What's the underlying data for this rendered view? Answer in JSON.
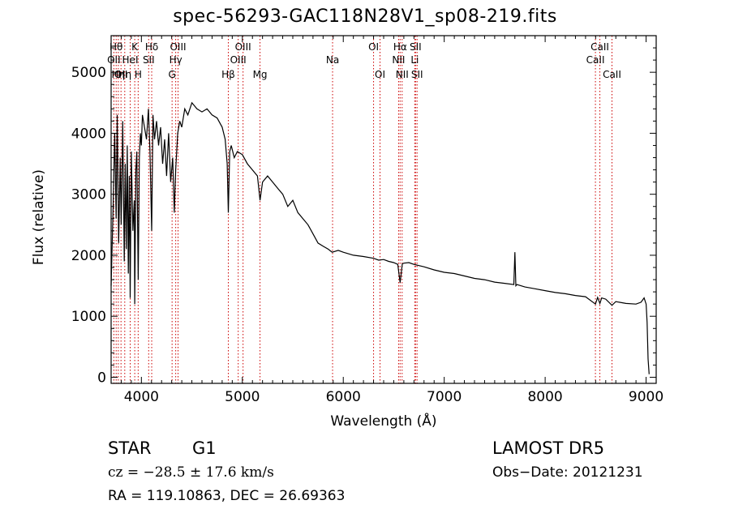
{
  "header": {
    "title": "spec-56293-GAC118N28V1_sp08-219.fits"
  },
  "info": {
    "object_class": "STAR",
    "subclass": "G1",
    "redshift_line": "cz = −28.5 ± 17.6 km/s",
    "coords_line": "RA = 119.10863, DEC =  26.69363",
    "survey": "LAMOST DR5",
    "obs_date_line": "Obs−Date: 20121231"
  },
  "chart_data": {
    "type": "line",
    "title": "spec-56293-GAC118N28V1_sp08-219.fits",
    "xlabel": "Wavelength (Å)",
    "ylabel": "Flux (relative)",
    "xlim": [
      3700,
      9100
    ],
    "ylim": [
      -100,
      5600
    ],
    "x_ticks": [
      4000,
      5000,
      6000,
      7000,
      8000,
      9000
    ],
    "y_ticks": [
      0,
      1000,
      2000,
      3000,
      4000,
      5000
    ],
    "grid": false,
    "line_color": "#000000",
    "marker_color": "#cc0000",
    "series": [
      {
        "x": [
          3700,
          3720,
          3735,
          3750,
          3760,
          3775,
          3790,
          3800,
          3815,
          3830,
          3840,
          3850,
          3860,
          3870,
          3880,
          3889,
          3900,
          3915,
          3930,
          3934,
          3945,
          3955,
          3968,
          3980,
          3990,
          4000,
          4010,
          4030,
          4050,
          4070,
          4085,
          4102,
          4115,
          4130,
          4150,
          4170,
          4190,
          4210,
          4230,
          4250,
          4270,
          4290,
          4310,
          4326,
          4340,
          4360,
          4380,
          4400,
          4430,
          4460,
          4500,
          4550,
          4600,
          4650,
          4700,
          4750,
          4800,
          4830,
          4850,
          4861,
          4875,
          4890,
          4920,
          4950,
          5000,
          5050,
          5100,
          5150,
          5175,
          5200,
          5250,
          5300,
          5350,
          5400,
          5450,
          5500,
          5550,
          5600,
          5650,
          5700,
          5750,
          5800,
          5850,
          5890,
          5950,
          6000,
          6100,
          6200,
          6300,
          6350,
          6400,
          6450,
          6500,
          6540,
          6563,
          6585,
          6600,
          6650,
          6700,
          6800,
          6900,
          7000,
          7100,
          7200,
          7300,
          7400,
          7500,
          7600,
          7690,
          7700,
          7710,
          7720,
          7800,
          7900,
          8000,
          8100,
          8200,
          8300,
          8400,
          8498,
          8520,
          8542,
          8560,
          8600,
          8662,
          8700,
          8800,
          8900,
          8950,
          8980,
          9000,
          9010,
          9020,
          9030
        ],
        "y": [
          1500,
          2800,
          4000,
          2600,
          4300,
          2200,
          3600,
          2500,
          4200,
          1900,
          3500,
          2100,
          3800,
          1700,
          3300,
          1300,
          3700,
          2400,
          2900,
          1200,
          3400,
          3700,
          1600,
          3600,
          4000,
          3800,
          4300,
          4100,
          3900,
          4400,
          3700,
          2400,
          4300,
          3900,
          4200,
          3800,
          4100,
          3500,
          3900,
          3300,
          4000,
          3200,
          3600,
          2700,
          3400,
          4000,
          4200,
          4100,
          4400,
          4300,
          4500,
          4400,
          4350,
          4400,
          4300,
          4250,
          4100,
          3900,
          3500,
          2700,
          3700,
          3800,
          3600,
          3700,
          3650,
          3500,
          3400,
          3300,
          2900,
          3200,
          3300,
          3200,
          3100,
          3000,
          2800,
          2900,
          2700,
          2600,
          2500,
          2350,
          2200,
          2150,
          2100,
          2050,
          2080,
          2050,
          2000,
          1980,
          1950,
          1920,
          1930,
          1900,
          1880,
          1850,
          1550,
          1860,
          1870,
          1880,
          1850,
          1810,
          1760,
          1720,
          1700,
          1660,
          1620,
          1600,
          1560,
          1540,
          1520,
          2050,
          1500,
          1520,
          1480,
          1450,
          1420,
          1390,
          1370,
          1340,
          1320,
          1200,
          1310,
          1210,
          1300,
          1280,
          1180,
          1240,
          1210,
          1200,
          1230,
          1300,
          1200,
          900,
          300,
          50
        ]
      }
    ],
    "line_markers": [
      {
        "x": 3727,
        "label": "OII",
        "row": 2
      },
      {
        "x": 3750,
        "label": "Hθ",
        "row": 1
      },
      {
        "x": 3771,
        "label": "Hη",
        "row": 3
      },
      {
        "x": 3798,
        "label": "OII",
        "row": 3
      },
      {
        "x": 3835,
        "label": "Hη",
        "row": 3
      },
      {
        "x": 3889,
        "label": "HeI",
        "row": 2
      },
      {
        "x": 3934,
        "label": "K",
        "row": 1
      },
      {
        "x": 3968,
        "label": "H",
        "row": 3
      },
      {
        "x": 4072,
        "label": "SII",
        "row": 2
      },
      {
        "x": 4102,
        "label": "Hδ",
        "row": 1
      },
      {
        "x": 4304,
        "label": "G",
        "row": 3
      },
      {
        "x": 4340,
        "label": "Hγ",
        "row": 2
      },
      {
        "x": 4363,
        "label": "OIII",
        "row": 1
      },
      {
        "x": 4861,
        "label": "Hβ",
        "row": 3
      },
      {
        "x": 4959,
        "label": "OIII",
        "row": 2
      },
      {
        "x": 5007,
        "label": "OIII",
        "row": 1
      },
      {
        "x": 5175,
        "label": "Mg",
        "row": 3
      },
      {
        "x": 5894,
        "label": "Na",
        "row": 2
      },
      {
        "x": 6300,
        "label": "OI",
        "row": 1
      },
      {
        "x": 6364,
        "label": "OI",
        "row": 3
      },
      {
        "x": 6548,
        "label": "NII",
        "row": 2
      },
      {
        "x": 6563,
        "label": "Hα",
        "row": 1
      },
      {
        "x": 6583,
        "label": "NII",
        "row": 3
      },
      {
        "x": 6708,
        "label": "Li",
        "row": 2
      },
      {
        "x": 6716,
        "label": "SII",
        "row": 1
      },
      {
        "x": 6731,
        "label": "SII",
        "row": 3
      },
      {
        "x": 8498,
        "label": "CaII",
        "row": 2
      },
      {
        "x": 8542,
        "label": "CaII",
        "row": 1
      },
      {
        "x": 8662,
        "label": "CaII",
        "row": 3
      }
    ]
  }
}
